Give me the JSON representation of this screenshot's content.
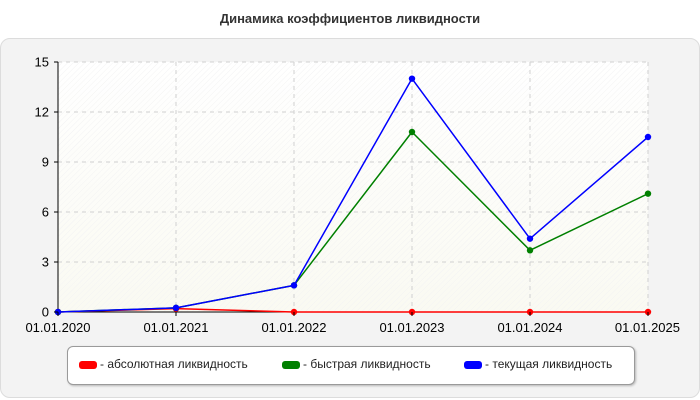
{
  "title": "Динамика коэффициентов ликвидности",
  "chart_data": {
    "type": "line",
    "title": "Динамика коэффициентов ликвидности",
    "categories": [
      "01.01.2020",
      "01.01.2021",
      "01.01.2022",
      "01.01.2023",
      "01.01.2024",
      "01.01.2025"
    ],
    "y_ticks": [
      "0",
      "3",
      "6",
      "9",
      "12",
      "15"
    ],
    "ylim": [
      0,
      15
    ],
    "grid": true,
    "legend_position": "bottom",
    "series": [
      {
        "name": "- абсолютная ликвидность",
        "color": "#ff0000",
        "values": [
          0.0,
          0.2,
          0.0,
          0.0,
          0.0,
          0.0
        ]
      },
      {
        "name": "- быстрая ликвидность",
        "color": "#008000",
        "values": [
          0.0,
          0.25,
          1.6,
          10.8,
          3.7,
          7.1
        ]
      },
      {
        "name": "- текущая ликвидность",
        "color": "#0000ff",
        "values": [
          0.0,
          0.25,
          1.6,
          14.0,
          4.4,
          10.5
        ]
      }
    ]
  }
}
